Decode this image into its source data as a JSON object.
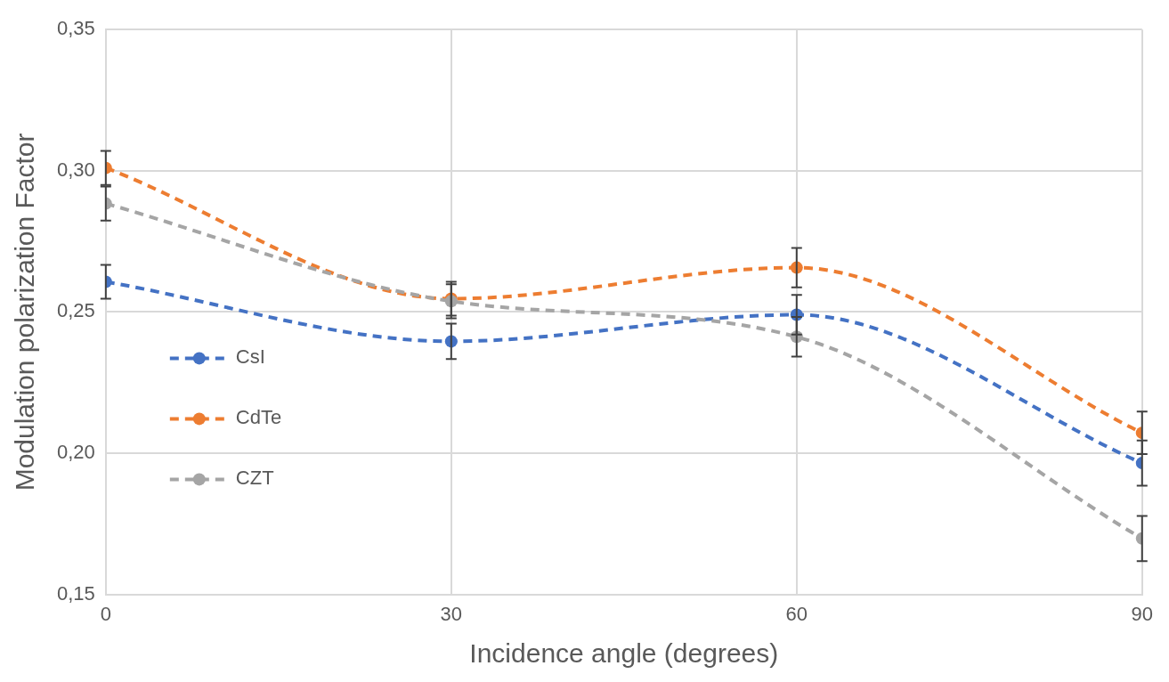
{
  "chart_data": {
    "type": "line",
    "xlabel": "Incidence angle (degrees)",
    "ylabel": "Modulation polarization Factor",
    "x": [
      0,
      30,
      60,
      90
    ],
    "series": [
      {
        "name": "CsI",
        "color": "#4472c4",
        "values": [
          0.2607,
          0.2396,
          0.249,
          0.1965
        ],
        "errors": [
          0.006,
          0.0063,
          0.007,
          0.008
        ]
      },
      {
        "name": "CdTe",
        "color": "#ed7d31",
        "values": [
          0.301,
          0.2547,
          0.2657,
          0.2072
        ],
        "errors": [
          0.006,
          0.006,
          0.007,
          0.0075
        ]
      },
      {
        "name": "CZT",
        "color": "#a5a5a5",
        "values": [
          0.2884,
          0.2538,
          0.2412,
          0.1698
        ],
        "errors": [
          0.006,
          0.006,
          0.007,
          0.008
        ]
      }
    ],
    "xlim": [
      0,
      90
    ],
    "xticks": [
      0,
      30,
      60,
      90
    ],
    "ylim": [
      0.15,
      0.35
    ],
    "yticks": [
      {
        "value": 0.15,
        "label": "0,15"
      },
      {
        "value": 0.2,
        "label": "0,20"
      },
      {
        "value": 0.25,
        "label": "0,25"
      },
      {
        "value": 0.3,
        "label": "0,30"
      },
      {
        "value": 0.35,
        "label": "0,35"
      }
    ],
    "grid": true,
    "legend": "left",
    "marker": "circle",
    "line_style": "dashed"
  }
}
